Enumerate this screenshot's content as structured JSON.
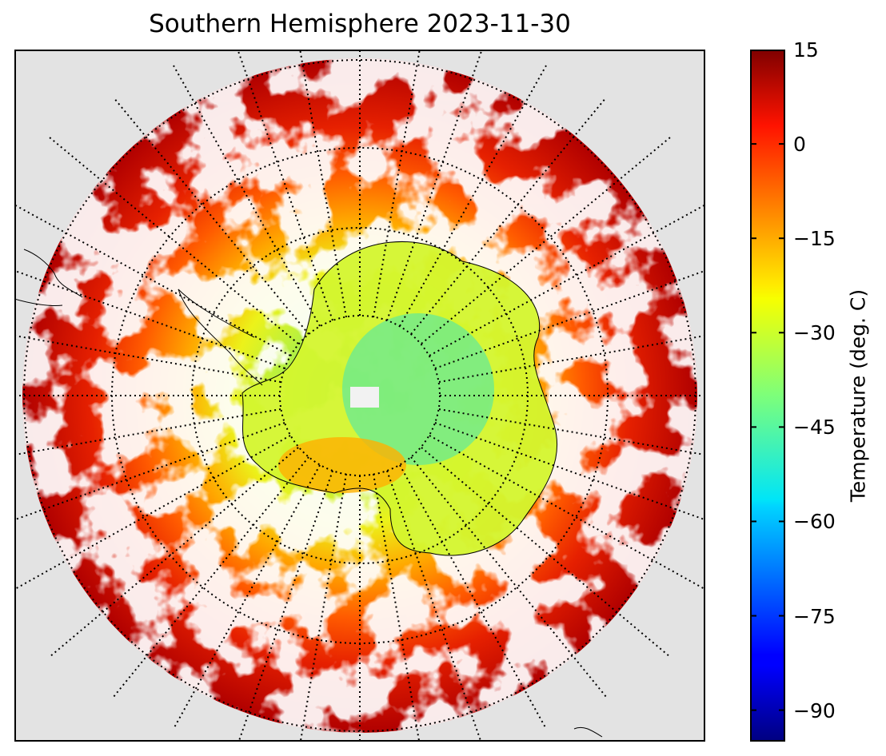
{
  "title": "Southern Hemisphere 2023-11-30",
  "colorbar": {
    "label": "Temperature (deg. C)",
    "min": -95,
    "max": 15,
    "ticks": [
      "15",
      "0",
      "−15",
      "−30",
      "−45",
      "−60",
      "−75",
      "−90"
    ],
    "tick_values": [
      15,
      0,
      -15,
      -30,
      -45,
      -60,
      -75,
      -90
    ],
    "colormap": "jet"
  },
  "map": {
    "projection": "south-polar-stereographic",
    "background_color": "#e3e3e3",
    "graticule_style": "dotted",
    "graticule_color": "#000000",
    "coastline_color": "#000000"
  }
}
